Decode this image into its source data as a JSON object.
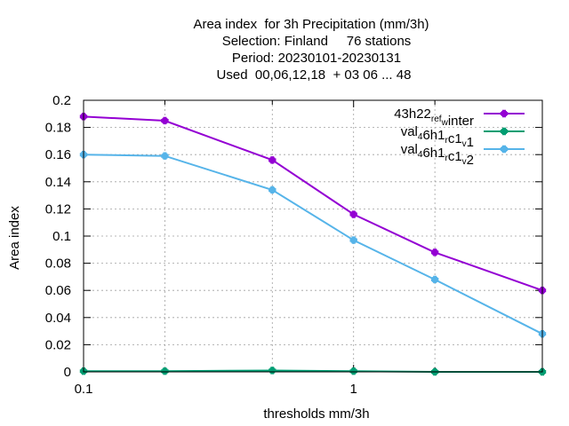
{
  "title_lines": [
    "Area index  for 3h Precipitation (mm/3h)",
    "Selection: Finland     76 stations",
    "Period: 20230101-20230131",
    "Used  00,06,12,18  + 03 06 ... 48"
  ],
  "chart_data": {
    "type": "line",
    "xlabel": "thresholds mm/3h",
    "ylabel": "Area index",
    "xscale": "log",
    "xlim": [
      0.1,
      5
    ],
    "ylim": [
      0,
      0.2
    ],
    "x_ticks": [
      0.1,
      1
    ],
    "x_minor_ticks": [
      0.2,
      0.5,
      2,
      5
    ],
    "x_tick_labels": [
      "0.1",
      "1"
    ],
    "y_ticks": [
      0,
      0.02,
      0.04,
      0.06,
      0.08,
      0.1,
      0.12,
      0.14,
      0.16,
      0.18,
      0.2
    ],
    "y_tick_labels": [
      "0",
      "0.02",
      "0.04",
      "0.06",
      "0.08",
      "0.1",
      "0.12",
      "0.14",
      "0.16",
      "0.18",
      "0.2"
    ],
    "grid": true,
    "legend_position": "top-right",
    "x": [
      0.1,
      0.2,
      0.5,
      1,
      2,
      5
    ],
    "series": [
      {
        "legend": [
          [
            "43h22",
            ""
          ],
          [
            "ref",
            "sub"
          ],
          [
            "w",
            "sub"
          ],
          [
            "inter",
            ""
          ]
        ],
        "color": "#9400d3",
        "values": [
          0.188,
          0.185,
          0.156,
          0.116,
          0.088,
          0.06
        ]
      },
      {
        "legend": [
          [
            "val",
            ""
          ],
          [
            "4",
            "sub"
          ],
          [
            "6h1",
            ""
          ],
          [
            "r",
            "sub"
          ],
          [
            "c1",
            ""
          ],
          [
            "v",
            "sub"
          ],
          [
            "1",
            ""
          ]
        ],
        "color": "#009e73",
        "values": [
          0.0005,
          0.0005,
          0.001,
          0.0005,
          0.0,
          0.0
        ]
      },
      {
        "legend": [
          [
            "val",
            ""
          ],
          [
            "4",
            "sub"
          ],
          [
            "6h1",
            ""
          ],
          [
            "r",
            "sub"
          ],
          [
            "c1",
            ""
          ],
          [
            "v",
            "sub"
          ],
          [
            "2",
            ""
          ]
        ],
        "color": "#56b4e9",
        "values": [
          0.16,
          0.159,
          0.134,
          0.097,
          0.068,
          0.028
        ]
      }
    ]
  }
}
